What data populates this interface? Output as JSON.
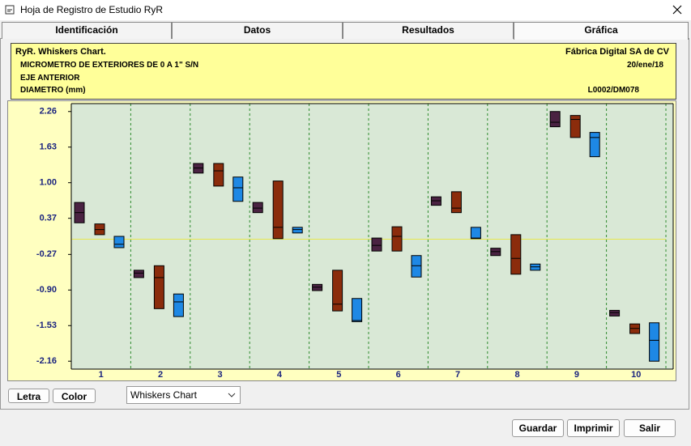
{
  "window": {
    "title": "Hoja de Registro de Estudio RyR"
  },
  "tabs": [
    "Identificación",
    "Datos",
    "Resultados",
    "Gráfica"
  ],
  "header": {
    "title": "RyR. Whiskers Chart.",
    "company": "Fábrica Digital SA de CV",
    "instrument": "MICROMETRO DE EXTERIORES DE 0 A 1\" S/N",
    "date": "20/ene/18",
    "part": "EJE ANTERIOR",
    "characteristic": "DIAMETRO (mm)",
    "code": "L0002/DM078"
  },
  "chart_data": {
    "type": "whiskers",
    "categories": [
      "1",
      "2",
      "3",
      "4",
      "5",
      "6",
      "7",
      "8",
      "9",
      "10"
    ],
    "series": [
      {
        "color": "#4a2242",
        "max": [
          0.65,
          -0.55,
          1.34,
          0.65,
          -0.8,
          0.02,
          0.75,
          -0.16,
          2.26,
          -1.26
        ],
        "mid": [
          0.47,
          -0.6,
          1.26,
          0.55,
          -0.85,
          -0.11,
          0.68,
          -0.22,
          2.07,
          -1.3
        ],
        "min": [
          0.29,
          -0.68,
          1.17,
          0.47,
          -0.91,
          -0.21,
          0.6,
          -0.29,
          1.99,
          -1.36
        ]
      },
      {
        "color": "#8b2c0c",
        "max": [
          0.27,
          -0.47,
          1.34,
          1.03,
          -0.55,
          0.22,
          0.84,
          0.08,
          2.19,
          -1.5
        ],
        "mid": [
          0.17,
          -0.68,
          1.21,
          0.21,
          -1.15,
          0.05,
          0.55,
          -0.34,
          2.12,
          -1.58
        ],
        "min": [
          0.08,
          -1.23,
          0.94,
          0.01,
          -1.27,
          -0.21,
          0.47,
          -0.62,
          1.8,
          -1.67
        ]
      },
      {
        "color": "#1e88e5",
        "max": [
          0.05,
          -0.97,
          1.1,
          0.21,
          -1.05,
          -0.29,
          0.21,
          -0.44,
          1.89,
          -1.48
        ],
        "mid": [
          -0.09,
          -1.11,
          0.91,
          0.17,
          -1.44,
          -0.47,
          0.02,
          -0.49,
          1.8,
          -1.79
        ],
        "min": [
          -0.15,
          -1.37,
          0.67,
          0.11,
          -1.46,
          -0.67,
          0.01,
          -0.55,
          1.46,
          -2.16
        ]
      }
    ],
    "center_line": 0,
    "ylim": [
      -2.3,
      2.4
    ],
    "yticks": [
      2.26,
      1.63,
      {
        "value": 1,
        "label": "1.00"
      },
      0.37,
      -0.27,
      {
        "value": -0.9,
        "label": "-0.90"
      },
      -1.53,
      -2.16
    ],
    "grid": true
  },
  "controls": {
    "font_button": "Letra",
    "color_button": "Color",
    "chart_select": "Whiskers Chart"
  },
  "buttons": {
    "save": "Guardar",
    "print": "Imprimir",
    "exit": "Salir"
  }
}
